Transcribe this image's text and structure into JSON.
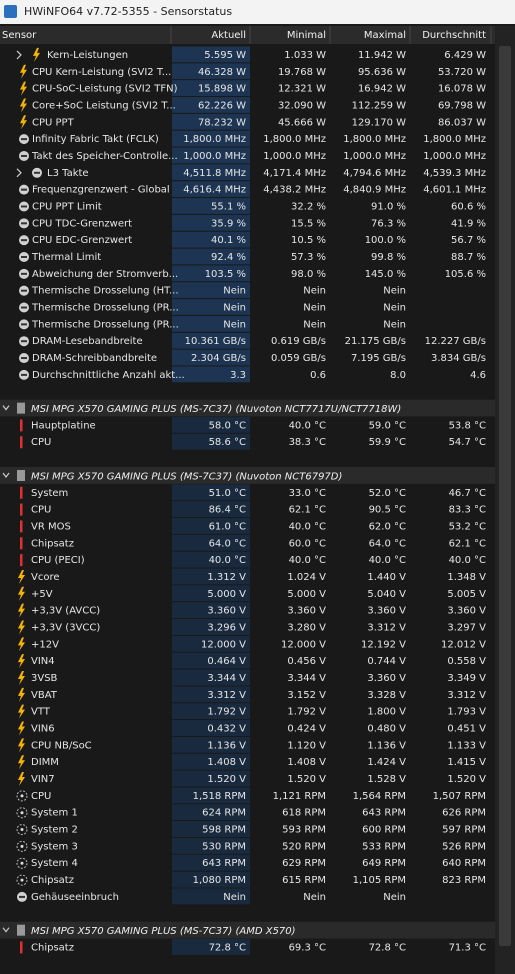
{
  "window": {
    "title": "HWiNFO64 v7.72-5355 - Sensorstatus"
  },
  "table": {
    "columns": [
      "Sensor",
      "Aktuell",
      "Minimal",
      "Maximal",
      "Durchschnitt"
    ],
    "sections": [
      {
        "rows": [
          [
            "Kern-Leistungen",
            "5.595 W",
            "1.033 W",
            "11.942 W",
            "6.429 W"
          ],
          [
            "CPU Kern-Leistung (SVI2 T...",
            "46.328 W",
            "19.768 W",
            "95.636 W",
            "53.720 W"
          ],
          [
            "CPU-SoC-Leistung (SVI2 TFN)",
            "15.898 W",
            "12.321 W",
            "16.942 W",
            "16.078 W"
          ],
          [
            "Core+SoC Leistung (SVI2 T...",
            "62.226 W",
            "32.090 W",
            "112.259 W",
            "69.798 W"
          ],
          [
            "CPU PPT",
            "78.232 W",
            "45.666 W",
            "129.170 W",
            "86.037 W"
          ],
          [
            "Infinity Fabric Takt (FCLK)",
            "1,800.0 MHz",
            "1,800.0 MHz",
            "1,800.0 MHz",
            "1,800.0 MHz"
          ],
          [
            "Takt des Speicher-Controlle...",
            "1,000.0 MHz",
            "1,000.0 MHz",
            "1,000.0 MHz",
            "1,000.0 MHz"
          ],
          [
            "L3 Takte",
            "4,511.8 MHz",
            "4,171.4 MHz",
            "4,794.6 MHz",
            "4,539.3 MHz"
          ],
          [
            "Frequenzgrenzwert - Global",
            "4,616.4 MHz",
            "4,438.2 MHz",
            "4,840.9 MHz",
            "4,601.1 MHz"
          ],
          [
            "CPU PPT Limit",
            "55.1 %",
            "32.2 %",
            "91.0 %",
            "60.6 %"
          ],
          [
            "CPU TDC-Grenzwert",
            "35.9 %",
            "15.5 %",
            "76.3 %",
            "41.9 %"
          ],
          [
            "CPU EDC-Grenzwert",
            "40.1 %",
            "10.5 %",
            "100.0 %",
            "56.7 %"
          ],
          [
            "Thermal Limit",
            "92.4 %",
            "57.3 %",
            "99.8 %",
            "88.7 %"
          ],
          [
            "Abweichung der Stromverb...",
            "103.5 %",
            "98.0 %",
            "145.0 %",
            "105.6 %"
          ],
          [
            "Thermische Drosselung (HT...",
            "Nein",
            "Nein",
            "Nein"
          ],
          [
            "Thermische Drosselung (PR...",
            "Nein",
            "Nein",
            "Nein"
          ],
          [
            "Thermische Drosselung (PR...",
            "Nein",
            "Nein",
            "Nein"
          ],
          [
            "DRAM-Lesebandbreite",
            "10.361 GB/s",
            "0.619 GB/s",
            "21.175 GB/s",
            "12.227 GB/s"
          ],
          [
            "DRAM-Schreibbandbreite",
            "2.304 GB/s",
            "0.059 GB/s",
            "7.195 GB/s",
            "3.834 GB/s"
          ],
          [
            "Durchschnittliche Anzahl akt...",
            "3.3",
            "0.6",
            "8.0",
            "4.6"
          ]
        ]
      },
      {
        "title": "MSI MPG X570 GAMING PLUS (MS-7C37) (Nuvoton NCT7717U/NCT7718W)",
        "rows": [
          [
            "Hauptplatine",
            "58.0 °C",
            "40.0 °C",
            "59.0 °C",
            "53.8 °C"
          ],
          [
            "CPU",
            "58.6 °C",
            "38.3 °C",
            "59.9 °C",
            "54.7 °C"
          ]
        ]
      },
      {
        "title": "MSI MPG X570 GAMING PLUS (MS-7C37) (Nuvoton NCT6797D)",
        "rows": [
          [
            "System",
            "51.0 °C",
            "33.0 °C",
            "52.0 °C",
            "46.7 °C"
          ],
          [
            "CPU",
            "86.4 °C",
            "62.1 °C",
            "90.5 °C",
            "83.3 °C"
          ],
          [
            "VR MOS",
            "61.0 °C",
            "40.0 °C",
            "62.0 °C",
            "53.2 °C"
          ],
          [
            "Chipsatz",
            "64.0 °C",
            "60.0 °C",
            "64.0 °C",
            "62.1 °C"
          ],
          [
            "CPU (PECI)",
            "40.0 °C",
            "40.0 °C",
            "40.0 °C",
            "40.0 °C"
          ],
          [
            "Vcore",
            "1.312 V",
            "1.024 V",
            "1.440 V",
            "1.348 V"
          ],
          [
            "+5V",
            "5.000 V",
            "5.000 V",
            "5.040 V",
            "5.005 V"
          ],
          [
            "+3,3V (AVCC)",
            "3.360 V",
            "3.360 V",
            "3.360 V",
            "3.360 V"
          ],
          [
            "+3,3V (3VCC)",
            "3.296 V",
            "3.280 V",
            "3.312 V",
            "3.297 V"
          ],
          [
            "+12V",
            "12.000 V",
            "12.000 V",
            "12.192 V",
            "12.012 V"
          ],
          [
            "VIN4",
            "0.464 V",
            "0.456 V",
            "0.744 V",
            "0.558 V"
          ],
          [
            "3VSB",
            "3.344 V",
            "3.344 V",
            "3.360 V",
            "3.349 V"
          ],
          [
            "VBAT",
            "3.312 V",
            "3.152 V",
            "3.328 V",
            "3.312 V"
          ],
          [
            "VTT",
            "1.792 V",
            "1.792 V",
            "1.800 V",
            "1.793 V"
          ],
          [
            "VIN6",
            "0.432 V",
            "0.424 V",
            "0.480 V",
            "0.451 V"
          ],
          [
            "CPU NB/SoC",
            "1.136 V",
            "1.120 V",
            "1.136 V",
            "1.133 V"
          ],
          [
            "DIMM",
            "1.408 V",
            "1.408 V",
            "1.424 V",
            "1.415 V"
          ],
          [
            "VIN7",
            "1.520 V",
            "1.520 V",
            "1.528 V",
            "1.520 V"
          ],
          [
            "CPU",
            "1,518 RPM",
            "1,121 RPM",
            "1,564 RPM",
            "1,507 RPM"
          ],
          [
            "System 1",
            "624 RPM",
            "618 RPM",
            "643 RPM",
            "626 RPM"
          ],
          [
            "System 2",
            "598 RPM",
            "593 RPM",
            "600 RPM",
            "597 RPM"
          ],
          [
            "System 3",
            "530 RPM",
            "520 RPM",
            "533 RPM",
            "526 RPM"
          ],
          [
            "System 4",
            "643 RPM",
            "629 RPM",
            "649 RPM",
            "640 RPM"
          ],
          [
            "Chipsatz",
            "1,080 RPM",
            "615 RPM",
            "1,105 RPM",
            "823 RPM"
          ],
          [
            "Gehäuseeinbruch",
            "Nein",
            "Nein",
            "Nein"
          ]
        ]
      },
      {
        "title": "MSI MPG X570 GAMING PLUS (MS-7C37) (AMD X570)",
        "rows": [
          [
            "Chipsatz",
            "72.8 °C",
            "69.3 °C",
            "72.8 °C",
            "71.3 °C"
          ]
        ]
      }
    ]
  }
}
